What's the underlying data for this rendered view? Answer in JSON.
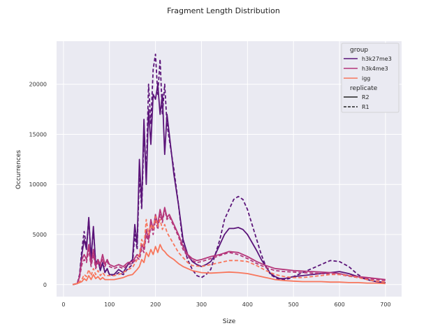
{
  "chart_data": {
    "type": "line",
    "title": "Fragment Length Distribution",
    "xlabel": "Size",
    "ylabel": "Occurrences",
    "xlim": [
      -15,
      735
    ],
    "ylim": [
      -1200,
      24300
    ],
    "xticks": [
      0,
      100,
      200,
      300,
      400,
      500,
      600,
      700
    ],
    "yticks": [
      0,
      5000,
      10000,
      15000,
      20000
    ],
    "grid": true,
    "background": "#eaeaf2",
    "legend": {
      "position": "top-right",
      "hue_title": "group",
      "style_title": "replicate",
      "groups": [
        {
          "label": "h3k27me3",
          "color": "#5b1479"
        },
        {
          "label": "h3k4me3",
          "color": "#b5367a"
        },
        {
          "label": "igg",
          "color": "#f8765c"
        }
      ],
      "styles": [
        {
          "label": "R2",
          "dash": "solid"
        },
        {
          "label": "R1",
          "dash": "dashed"
        }
      ]
    },
    "series": [
      {
        "group": "h3k27me3",
        "replicate": "R2",
        "color": "#5b1479",
        "dash": "solid",
        "x": [
          20,
          30,
          35,
          40,
          45,
          50,
          55,
          60,
          65,
          70,
          75,
          80,
          85,
          90,
          95,
          100,
          110,
          120,
          130,
          140,
          150,
          155,
          160,
          165,
          170,
          175,
          180,
          185,
          190,
          195,
          200,
          205,
          210,
          215,
          220,
          225,
          230,
          240,
          250,
          260,
          270,
          280,
          290,
          300,
          310,
          320,
          330,
          340,
          350,
          360,
          370,
          380,
          390,
          400,
          410,
          420,
          430,
          440,
          450,
          460,
          470,
          480,
          490,
          500,
          520,
          540,
          560,
          580,
          600,
          620,
          640,
          660,
          680,
          700
        ],
        "y": [
          0,
          100,
          800,
          3000,
          4500,
          3500,
          6700,
          2500,
          5800,
          2000,
          2500,
          1400,
          2200,
          1200,
          1600,
          1000,
          1000,
          1500,
          1200,
          2000,
          2500,
          6000,
          4000,
          12500,
          8000,
          16500,
          10000,
          17500,
          14000,
          19000,
          18500,
          20000,
          17000,
          19000,
          13000,
          17000,
          15000,
          11000,
          8000,
          4500,
          3000,
          2300,
          2000,
          1800,
          2000,
          2300,
          3000,
          4000,
          5000,
          5600,
          5600,
          5700,
          5500,
          5000,
          4200,
          3400,
          2500,
          1800,
          1100,
          800,
          600,
          600,
          700,
          800,
          900,
          1000,
          1100,
          1200,
          1300,
          1100,
          800,
          500,
          300,
          200
        ]
      },
      {
        "group": "h3k27me3",
        "replicate": "R1",
        "color": "#5b1479",
        "dash": "dashed",
        "x": [
          20,
          30,
          35,
          40,
          45,
          50,
          55,
          60,
          65,
          70,
          75,
          80,
          85,
          90,
          95,
          100,
          110,
          120,
          130,
          140,
          150,
          155,
          160,
          165,
          170,
          175,
          180,
          185,
          190,
          195,
          200,
          205,
          210,
          215,
          220,
          225,
          230,
          240,
          250,
          260,
          270,
          280,
          290,
          300,
          310,
          320,
          330,
          340,
          350,
          360,
          370,
          380,
          390,
          400,
          410,
          420,
          430,
          440,
          450,
          460,
          470,
          480,
          490,
          500,
          520,
          540,
          560,
          580,
          600,
          620,
          640,
          660,
          680,
          700
        ],
        "y": [
          0,
          100,
          1000,
          3500,
          5300,
          3800,
          6500,
          2700,
          5500,
          2100,
          2500,
          1500,
          2100,
          1300,
          1500,
          1000,
          900,
          1200,
          1000,
          1600,
          2000,
          5000,
          3500,
          11000,
          7500,
          15000,
          11000,
          20000,
          16000,
          21500,
          23000,
          19000,
          22500,
          17000,
          20000,
          16000,
          14500,
          11500,
          8000,
          4000,
          2500,
          1500,
          900,
          700,
          1000,
          1500,
          3000,
          4500,
          6500,
          7500,
          8500,
          8800,
          8500,
          7500,
          6000,
          4500,
          3000,
          1800,
          1000,
          700,
          500,
          500,
          600,
          800,
          1200,
          1600,
          2000,
          2400,
          2300,
          1800,
          1000,
          500,
          300,
          200
        ]
      },
      {
        "group": "h3k4me3",
        "replicate": "R2",
        "color": "#b5367a",
        "dash": "solid",
        "x": [
          20,
          30,
          35,
          40,
          45,
          50,
          55,
          60,
          65,
          70,
          75,
          80,
          85,
          90,
          95,
          100,
          110,
          120,
          130,
          140,
          150,
          160,
          165,
          170,
          175,
          180,
          185,
          190,
          195,
          200,
          205,
          210,
          215,
          220,
          225,
          230,
          240,
          250,
          260,
          270,
          280,
          290,
          300,
          320,
          340,
          360,
          380,
          400,
          420,
          440,
          460,
          480,
          500,
          520,
          540,
          560,
          580,
          600,
          620,
          640,
          660,
          680,
          700
        ],
        "y": [
          0,
          100,
          800,
          2500,
          3000,
          2500,
          4000,
          2000,
          3500,
          1800,
          2500,
          2000,
          3000,
          2000,
          2500,
          2000,
          1800,
          2000,
          1800,
          2200,
          2300,
          3000,
          2800,
          4000,
          3500,
          5500,
          4500,
          6500,
          5500,
          7000,
          6000,
          7500,
          6500,
          7700,
          6700,
          7000,
          6000,
          5000,
          3800,
          3000,
          2600,
          2400,
          2500,
          2800,
          3000,
          3300,
          3200,
          2800,
          2300,
          1900,
          1600,
          1500,
          1400,
          1350,
          1300,
          1250,
          1200,
          1100,
          900,
          800,
          700,
          600,
          500
        ]
      },
      {
        "group": "h3k4me3",
        "replicate": "R1",
        "color": "#b5367a",
        "dash": "dashed",
        "x": [
          20,
          30,
          35,
          40,
          45,
          50,
          55,
          60,
          65,
          70,
          75,
          80,
          85,
          90,
          95,
          100,
          110,
          120,
          130,
          140,
          150,
          160,
          165,
          170,
          175,
          180,
          185,
          190,
          195,
          200,
          205,
          210,
          215,
          220,
          225,
          230,
          240,
          250,
          260,
          270,
          280,
          290,
          300,
          320,
          340,
          360,
          380,
          400,
          420,
          440,
          460,
          480,
          500,
          520,
          540,
          560,
          580,
          600,
          620,
          640,
          660,
          680,
          700
        ],
        "y": [
          0,
          100,
          700,
          2000,
          2500,
          2200,
          3500,
          1800,
          3000,
          1600,
          2200,
          1800,
          2600,
          1800,
          2300,
          1800,
          1600,
          1800,
          1600,
          2000,
          2100,
          2700,
          2500,
          3600,
          3200,
          5000,
          4200,
          6000,
          5000,
          6500,
          5500,
          7000,
          6200,
          7500,
          6500,
          6800,
          5800,
          4800,
          3500,
          2800,
          2400,
          2200,
          2300,
          2600,
          2900,
          3200,
          3000,
          2600,
          2100,
          1700,
          1400,
          1300,
          1250,
          1200,
          1150,
          1100,
          1050,
          1000,
          850,
          700,
          600,
          500,
          400
        ]
      },
      {
        "group": "igg",
        "replicate": "R2",
        "color": "#f8765c",
        "dash": "solid",
        "x": [
          20,
          30,
          40,
          45,
          50,
          55,
          60,
          65,
          70,
          75,
          80,
          85,
          90,
          100,
          110,
          120,
          130,
          140,
          150,
          160,
          165,
          170,
          175,
          180,
          185,
          190,
          195,
          200,
          205,
          210,
          215,
          220,
          225,
          230,
          240,
          250,
          260,
          270,
          280,
          300,
          320,
          340,
          360,
          380,
          400,
          420,
          440,
          460,
          480,
          500,
          520,
          540,
          560,
          580,
          600,
          620,
          640,
          660,
          680,
          700
        ],
        "y": [
          0,
          100,
          300,
          600,
          400,
          900,
          500,
          1000,
          600,
          800,
          500,
          700,
          500,
          500,
          500,
          600,
          700,
          900,
          1000,
          1500,
          1800,
          2500,
          2200,
          3200,
          2800,
          3500,
          3000,
          3800,
          3200,
          4000,
          3500,
          3300,
          3000,
          2800,
          2500,
          2100,
          1800,
          1600,
          1400,
          1200,
          1150,
          1200,
          1250,
          1200,
          1100,
          900,
          700,
          500,
          400,
          350,
          300,
          300,
          300,
          250,
          250,
          200,
          200,
          150,
          150,
          100
        ]
      },
      {
        "group": "igg",
        "replicate": "R1",
        "color": "#f8765c",
        "dash": "dashed",
        "x": [
          20,
          30,
          40,
          45,
          50,
          55,
          60,
          65,
          70,
          75,
          80,
          85,
          90,
          100,
          110,
          120,
          130,
          140,
          150,
          160,
          165,
          170,
          175,
          180,
          185,
          190,
          195,
          200,
          205,
          210,
          215,
          220,
          225,
          230,
          240,
          250,
          260,
          270,
          280,
          300,
          320,
          340,
          360,
          380,
          400,
          420,
          440,
          460,
          480,
          500,
          520,
          540,
          560,
          580,
          600,
          620,
          640,
          660,
          680,
          700
        ],
        "y": [
          0,
          100,
          500,
          1000,
          800,
          1500,
          900,
          1600,
          1000,
          1400,
          900,
          1200,
          900,
          900,
          900,
          1000,
          1200,
          1500,
          1700,
          2500,
          3000,
          4500,
          3800,
          6500,
          5000,
          6000,
          5500,
          6800,
          5800,
          6500,
          5500,
          6000,
          5200,
          4800,
          4000,
          3200,
          2700,
          2200,
          1900,
          1800,
          2000,
          2200,
          2400,
          2400,
          2300,
          1900,
          1400,
          1000,
          800,
          700,
          700,
          800,
          900,
          1000,
          1000,
          900,
          700,
          500,
          350,
          250
        ]
      }
    ]
  }
}
